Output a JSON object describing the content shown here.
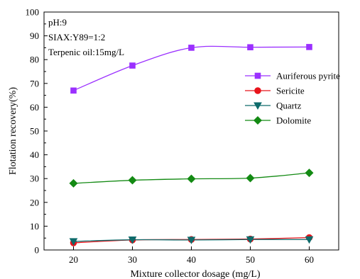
{
  "chart_data": {
    "type": "line",
    "title": "",
    "xlabel": "Mixture collector dosage (mg/L)",
    "ylabel": "Flotation recovery(%)",
    "xlim": [
      15,
      65
    ],
    "ylim": [
      0,
      100
    ],
    "xticks": [
      20,
      30,
      40,
      50,
      60
    ],
    "yticks": [
      0,
      10,
      20,
      30,
      40,
      50,
      60,
      70,
      80,
      90,
      100
    ],
    "grid": false,
    "legend_position": "top-right",
    "annotations": [
      "pH:9",
      "SIAX:Y89=1:2",
      "Terpenic oil:15mg/L"
    ],
    "x": [
      20,
      30,
      40,
      50,
      60
    ],
    "series": [
      {
        "name": "Auriferous pyrite",
        "values": [
          67.0,
          77.5,
          85.0,
          85.2,
          85.3
        ],
        "color": "#9b30ff",
        "marker": "square"
      },
      {
        "name": "Sericite",
        "values": [
          3.0,
          4.2,
          4.4,
          4.6,
          5.2
        ],
        "color": "#e8141b",
        "marker": "circle"
      },
      {
        "name": "Quartz",
        "values": [
          3.6,
          4.3,
          4.2,
          4.4,
          4.4
        ],
        "color": "#0e6b6b",
        "marker": "triangle-down"
      },
      {
        "name": "Dolomite",
        "values": [
          28.0,
          29.3,
          29.9,
          30.2,
          32.4
        ],
        "color": "#138a13",
        "marker": "diamond"
      }
    ]
  }
}
